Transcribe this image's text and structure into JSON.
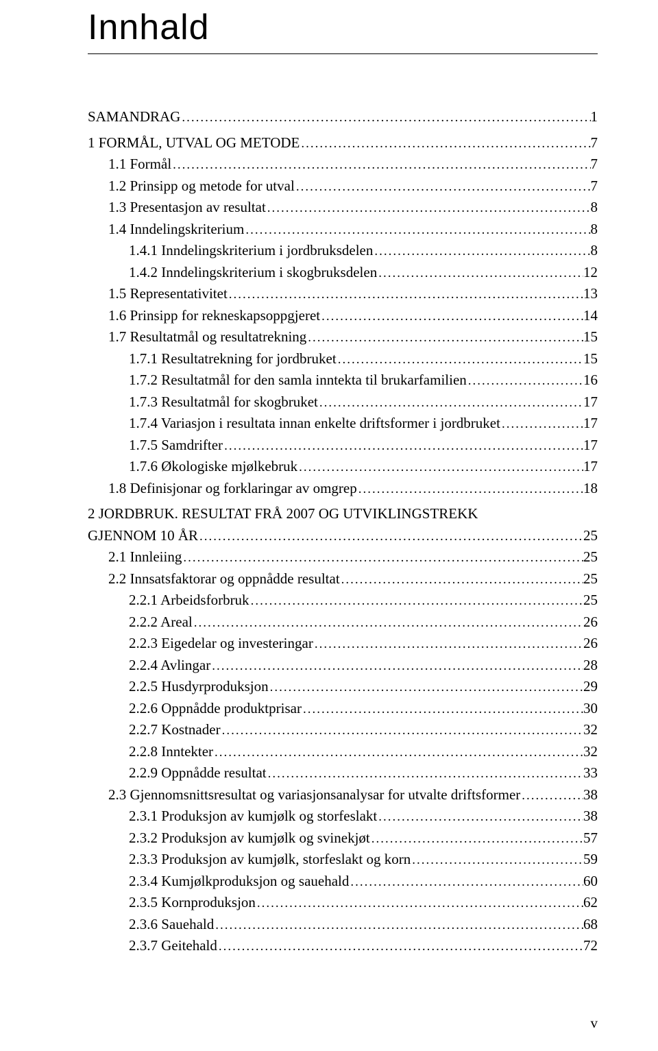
{
  "title": "Innhald",
  "page_number": "v",
  "toc": [
    {
      "label": "SAMANDRAG",
      "page": "1",
      "indent": 0,
      "gap": false
    },
    {
      "label": "1 FORMÅL, UTVAL OG METODE",
      "page": "7",
      "indent": 0,
      "gap": true
    },
    {
      "label": "1.1 Formål",
      "page": "7",
      "indent": 1,
      "gap": false
    },
    {
      "label": "1.2 Prinsipp og metode for utval",
      "page": "7",
      "indent": 1,
      "gap": false
    },
    {
      "label": "1.3 Presentasjon av resultat",
      "page": "8",
      "indent": 1,
      "gap": false
    },
    {
      "label": "1.4 Inndelingskriterium",
      "page": "8",
      "indent": 1,
      "gap": false
    },
    {
      "label": "1.4.1 Inndelingskriterium i jordbruksdelen",
      "page": "8",
      "indent": 2,
      "gap": false
    },
    {
      "label": "1.4.2 Inndelingskriterium i skogbruksdelen",
      "page": "12",
      "indent": 2,
      "gap": false
    },
    {
      "label": "1.5 Representativitet",
      "page": "13",
      "indent": 1,
      "gap": false
    },
    {
      "label": "1.6 Prinsipp for rekneskapsoppgjeret",
      "page": "14",
      "indent": 1,
      "gap": false
    },
    {
      "label": "1.7 Resultatmål og resultatrekning",
      "page": "15",
      "indent": 1,
      "gap": false
    },
    {
      "label": "1.7.1 Resultatrekning for jordbruket",
      "page": "15",
      "indent": 2,
      "gap": false
    },
    {
      "label": "1.7.2 Resultatmål for den samla inntekta til brukarfamilien",
      "page": "16",
      "indent": 2,
      "gap": false
    },
    {
      "label": "1.7.3 Resultatmål for skogbruket",
      "page": "17",
      "indent": 2,
      "gap": false
    },
    {
      "label": "1.7.4 Variasjon i resultata innan enkelte driftsformer i jordbruket",
      "page": "17",
      "indent": 2,
      "gap": false
    },
    {
      "label": "1.7.5 Samdrifter",
      "page": "17",
      "indent": 2,
      "gap": false
    },
    {
      "label": "1.7.6 Økologiske mjølkebruk",
      "page": "17",
      "indent": 2,
      "gap": false
    },
    {
      "label": "1.8 Definisjonar og forklaringar av omgrep",
      "page": "18",
      "indent": 1,
      "gap": false
    },
    {
      "label": "2 JORDBRUK. RESULTAT FRÅ 2007 OG UTVIKLINGSTREKK GJENNOM 10 ÅR",
      "page": "25",
      "indent": 0,
      "gap": true,
      "wrap": true
    },
    {
      "label": "2.1 Innleiing",
      "page": "25",
      "indent": 1,
      "gap": false
    },
    {
      "label": "2.2 Innsatsfaktorar og oppnådde resultat",
      "page": "25",
      "indent": 1,
      "gap": false
    },
    {
      "label": "2.2.1 Arbeidsforbruk",
      "page": "25",
      "indent": 2,
      "gap": false
    },
    {
      "label": "2.2.2 Areal",
      "page": "26",
      "indent": 2,
      "gap": false
    },
    {
      "label": "2.2.3 Eigedelar og investeringar",
      "page": "26",
      "indent": 2,
      "gap": false
    },
    {
      "label": "2.2.4 Avlingar",
      "page": "28",
      "indent": 2,
      "gap": false
    },
    {
      "label": "2.2.5 Husdyrproduksjon",
      "page": "29",
      "indent": 2,
      "gap": false
    },
    {
      "label": "2.2.6 Oppnådde produktprisar",
      "page": "30",
      "indent": 2,
      "gap": false
    },
    {
      "label": "2.2.7 Kostnader",
      "page": "32",
      "indent": 2,
      "gap": false
    },
    {
      "label": "2.2.8 Inntekter",
      "page": "32",
      "indent": 2,
      "gap": false
    },
    {
      "label": "2.2.9 Oppnådde resultat",
      "page": "33",
      "indent": 2,
      "gap": false
    },
    {
      "label": "2.3 Gjennomsnittsresultat og variasjonsanalysar for utvalte driftsformer",
      "page": "38",
      "indent": 1,
      "gap": false
    },
    {
      "label": "2.3.1 Produksjon av kumjølk og storfeslakt",
      "page": "38",
      "indent": 2,
      "gap": false
    },
    {
      "label": "2.3.2 Produksjon av kumjølk og svinekjøt",
      "page": "57",
      "indent": 2,
      "gap": false
    },
    {
      "label": "2.3.3 Produksjon av kumjølk, storfeslakt og korn",
      "page": "59",
      "indent": 2,
      "gap": false
    },
    {
      "label": "2.3.4 Kumjølkproduksjon og sauehald",
      "page": "60",
      "indent": 2,
      "gap": false
    },
    {
      "label": "2.3.5 Kornproduksjon",
      "page": "62",
      "indent": 2,
      "gap": false
    },
    {
      "label": "2.3.6 Sauehald",
      "page": "68",
      "indent": 2,
      "gap": false
    },
    {
      "label": "2.3.7 Geitehald",
      "page": "72",
      "indent": 2,
      "gap": false
    }
  ]
}
